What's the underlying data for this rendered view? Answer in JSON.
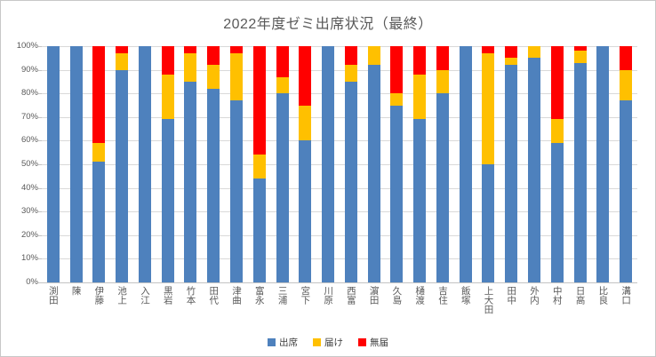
{
  "window": {
    "background": "#ffffff",
    "border_color": "#c8c8c8"
  },
  "palette": {
    "gridline": "#d9d9d9",
    "axis": "#c3c3c3",
    "text": "#595959"
  },
  "chart_data": {
    "type": "bar",
    "subtype": "stacked-100-percent",
    "title": "2022年度ゼミ出席状況（最終）",
    "grid": true,
    "legend_position": "bottom",
    "categories": [
      "渕田",
      "陳",
      "伊藤",
      "池上",
      "入江",
      "黒岩",
      "竹本",
      "田代",
      "津曲",
      "富永",
      "三浦",
      "宮下",
      "川原",
      "西富",
      "濵田",
      "久島",
      "樋渡",
      "吉住",
      "飯塚",
      "上大田",
      "田中",
      "外内",
      "中村",
      "日高",
      "比良",
      "溝口"
    ],
    "series": [
      {
        "name": "出席",
        "color": "#4e81bd",
        "values": [
          100,
          100,
          51,
          90,
          100,
          69,
          85,
          82,
          77,
          44,
          80,
          60,
          100,
          85,
          92,
          75,
          69,
          80,
          100,
          50,
          92,
          95,
          59,
          93,
          100,
          77
        ]
      },
      {
        "name": "届け",
        "color": "#ffc000",
        "values": [
          0,
          0,
          8,
          7,
          0,
          19,
          12,
          10,
          20,
          10,
          7,
          15,
          0,
          7,
          8,
          5,
          19,
          10,
          0,
          47,
          3,
          5,
          10,
          5,
          0,
          13
        ]
      },
      {
        "name": "無届",
        "color": "#ff0000",
        "values": [
          0,
          0,
          41,
          3,
          0,
          12,
          3,
          8,
          3,
          46,
          13,
          25,
          0,
          8,
          0,
          20,
          12,
          10,
          0,
          3,
          5,
          0,
          31,
          2,
          0,
          10
        ]
      }
    ],
    "y_axis": {
      "min": 0,
      "max": 100,
      "unit": "%",
      "ticks": [
        "0%",
        "10%",
        "20%",
        "30%",
        "40%",
        "50%",
        "60%",
        "70%",
        "80%",
        "90%",
        "100%"
      ]
    }
  }
}
